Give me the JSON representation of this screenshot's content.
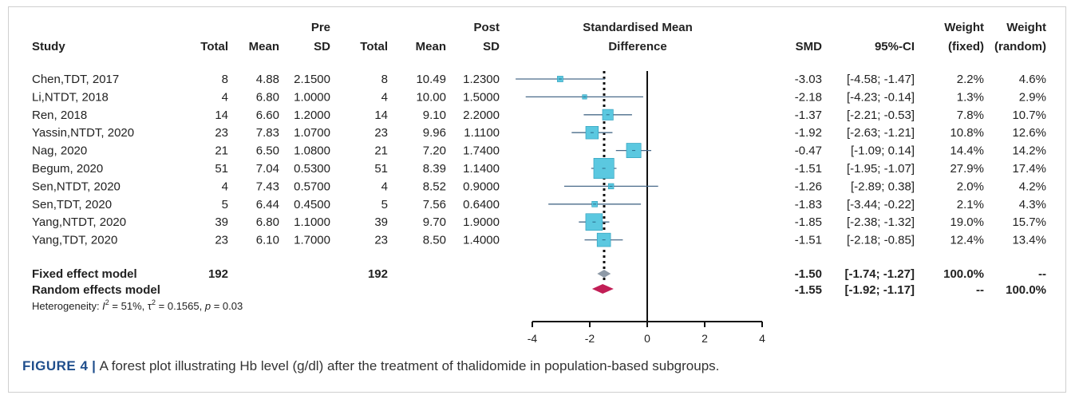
{
  "headers": {
    "study": "Study",
    "total": "Total",
    "mean": "Mean",
    "sd": "SD",
    "pre": "Pre",
    "post": "Post",
    "smd_title_1": "Standardised Mean",
    "smd_title_2": "Difference",
    "smd": "SMD",
    "ci": "95%-CI",
    "weight": "Weight",
    "fixed": "(fixed)",
    "random": "(random)"
  },
  "studies": [
    {
      "study": "Chen,TDT, 2017",
      "pre_total": "8",
      "pre_mean": "4.88",
      "pre_sd": "2.1500",
      "post_total": "8",
      "post_mean": "10.49",
      "post_sd": "1.2300",
      "smd_text": "-3.03",
      "ci_text": "[-4.58; -1.47]",
      "w_fixed": "2.2%",
      "w_random": "4.6%"
    },
    {
      "study": "Li,NTDT, 2018",
      "pre_total": "4",
      "pre_mean": "6.80",
      "pre_sd": "1.0000",
      "post_total": "4",
      "post_mean": "10.00",
      "post_sd": "1.5000",
      "smd_text": "-2.18",
      "ci_text": "[-4.23; -0.14]",
      "w_fixed": "1.3%",
      "w_random": "2.9%"
    },
    {
      "study": "Ren, 2018",
      "pre_total": "14",
      "pre_mean": "6.60",
      "pre_sd": "1.2000",
      "post_total": "14",
      "post_mean": "9.10",
      "post_sd": "2.2000",
      "smd_text": "-1.37",
      "ci_text": "[-2.21; -0.53]",
      "w_fixed": "7.8%",
      "w_random": "10.7%"
    },
    {
      "study": "Yassin,NTDT, 2020",
      "pre_total": "23",
      "pre_mean": "7.83",
      "pre_sd": "1.0700",
      "post_total": "23",
      "post_mean": "9.96",
      "post_sd": "1.1100",
      "smd_text": "-1.92",
      "ci_text": "[-2.63; -1.21]",
      "w_fixed": "10.8%",
      "w_random": "12.6%"
    },
    {
      "study": "Nag, 2020",
      "pre_total": "21",
      "pre_mean": "6.50",
      "pre_sd": "1.0800",
      "post_total": "21",
      "post_mean": "7.20",
      "post_sd": "1.7400",
      "smd_text": "-0.47",
      "ci_text": "[-1.09; 0.14]",
      "w_fixed": "14.4%",
      "w_random": "14.2%"
    },
    {
      "study": "Begum, 2020",
      "pre_total": "51",
      "pre_mean": "7.04",
      "pre_sd": "0.5300",
      "post_total": "51",
      "post_mean": "8.39",
      "post_sd": "1.1400",
      "smd_text": "-1.51",
      "ci_text": "[-1.95; -1.07]",
      "w_fixed": "27.9%",
      "w_random": "17.4%"
    },
    {
      "study": "Sen,NTDT, 2020",
      "pre_total": "4",
      "pre_mean": "7.43",
      "pre_sd": "0.5700",
      "post_total": "4",
      "post_mean": "8.52",
      "post_sd": "0.9000",
      "smd_text": "-1.26",
      "ci_text": "[-2.89; 0.38]",
      "w_fixed": "2.0%",
      "w_random": "4.2%"
    },
    {
      "study": "Sen,TDT, 2020",
      "pre_total": "5",
      "pre_mean": "6.44",
      "pre_sd": "0.4500",
      "post_total": "5",
      "post_mean": "7.56",
      "post_sd": "0.6400",
      "smd_text": "-1.83",
      "ci_text": "[-3.44; -0.22]",
      "w_fixed": "2.1%",
      "w_random": "4.3%"
    },
    {
      "study": "Yang,NTDT, 2020",
      "pre_total": "39",
      "pre_mean": "6.80",
      "pre_sd": "1.1000",
      "post_total": "39",
      "post_mean": "9.70",
      "post_sd": "1.9000",
      "smd_text": "-1.85",
      "ci_text": "[-2.38; -1.32]",
      "w_fixed": "19.0%",
      "w_random": "15.7%"
    },
    {
      "study": "Yang,TDT, 2020",
      "pre_total": "23",
      "pre_mean": "6.10",
      "pre_sd": "1.7000",
      "post_total": "23",
      "post_mean": "8.50",
      "post_sd": "1.4000",
      "smd_text": "-1.51",
      "ci_text": "[-2.18; -0.85]",
      "w_fixed": "12.4%",
      "w_random": "13.4%"
    }
  ],
  "fixed_model": {
    "label": "Fixed effect model",
    "pre_total": "192",
    "post_total": "192",
    "smd_text": "-1.50",
    "ci_text": "[-1.74; -1.27]",
    "w_fixed": "100.0%",
    "w_random": "--"
  },
  "random_model": {
    "label": "Random effects model",
    "smd_text": "-1.55",
    "ci_text": "[-1.92; -1.17]",
    "w_fixed": "--",
    "w_random": "100.0%"
  },
  "heterogeneity": {
    "prefix": "Heterogeneity: ",
    "i2_symbol": "I",
    "i2_value": " = 51%, ",
    "tau2_symbol": "τ",
    "tau2_value": " = 0.1565, ",
    "p_symbol": "p",
    "p_value": " = 0.03",
    "sup": "2"
  },
  "caption": {
    "label": "FIGURE 4",
    "separator": " | ",
    "text": "A forest plot illustrating Hb level (g/dl) after the treatment of thalidomide in population-based subgroups."
  },
  "chart_data": {
    "type": "forest",
    "x_ticks": [
      -4,
      -2,
      0,
      2,
      4
    ],
    "xlim": [
      -4,
      4
    ],
    "null_line": 0,
    "colors": {
      "square": "#5bc8e0",
      "square_edge": "#2a9bb8",
      "fixed_diamond": "#8e9aa7",
      "random_diamond": "#c21e56",
      "ci_line": "#4a6b8a"
    },
    "studies": [
      {
        "study": "Chen,TDT, 2017",
        "smd": -3.03,
        "lo": -4.58,
        "hi": -1.47,
        "w_fixed": 2.2
      },
      {
        "study": "Li,NTDT, 2018",
        "smd": -2.18,
        "lo": -4.23,
        "hi": -0.14,
        "w_fixed": 1.3
      },
      {
        "study": "Ren, 2018",
        "smd": -1.37,
        "lo": -2.21,
        "hi": -0.53,
        "w_fixed": 7.8
      },
      {
        "study": "Yassin,NTDT, 2020",
        "smd": -1.92,
        "lo": -2.63,
        "hi": -1.21,
        "w_fixed": 10.8
      },
      {
        "study": "Nag, 2020",
        "smd": -0.47,
        "lo": -1.09,
        "hi": 0.14,
        "w_fixed": 14.4
      },
      {
        "study": "Begum, 2020",
        "smd": -1.51,
        "lo": -1.95,
        "hi": -1.07,
        "w_fixed": 27.9
      },
      {
        "study": "Sen,NTDT, 2020",
        "smd": -1.26,
        "lo": -2.89,
        "hi": 0.38,
        "w_fixed": 2.0
      },
      {
        "study": "Sen,TDT, 2020",
        "smd": -1.83,
        "lo": -3.44,
        "hi": -0.22,
        "w_fixed": 2.1
      },
      {
        "study": "Yang,NTDT, 2020",
        "smd": -1.85,
        "lo": -2.38,
        "hi": -1.32,
        "w_fixed": 19.0
      },
      {
        "study": "Yang,TDT, 2020",
        "smd": -1.51,
        "lo": -2.18,
        "hi": -0.85,
        "w_fixed": 12.4
      }
    ],
    "fixed": {
      "smd": -1.5,
      "lo": -1.74,
      "hi": -1.27
    },
    "random": {
      "smd": -1.55,
      "lo": -1.92,
      "hi": -1.17
    }
  }
}
